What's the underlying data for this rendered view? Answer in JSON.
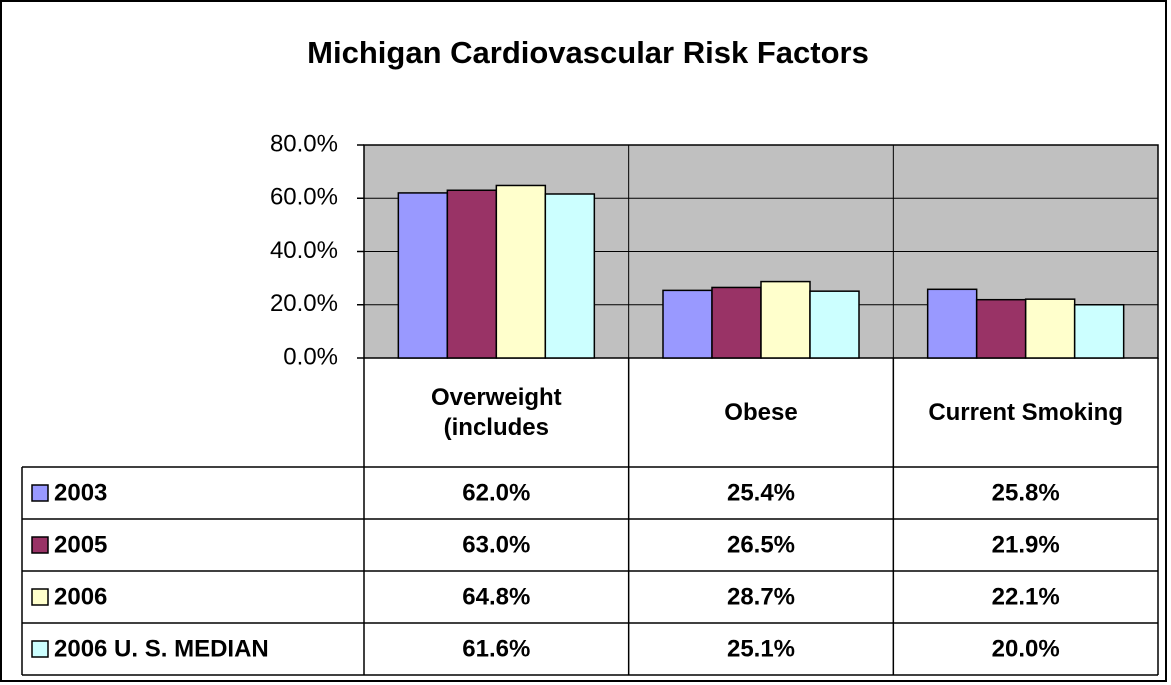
{
  "chart_data": {
    "type": "bar",
    "title": "Michigan Cardiovascular Risk Factors",
    "categories": [
      "Overweight (includes",
      "Obese",
      "Current Smoking"
    ],
    "series": [
      {
        "name": "2003",
        "color": "#9999ff",
        "values": [
          62.0,
          25.4,
          25.8
        ],
        "value_labels": [
          "62.0%",
          "25.4%",
          "25.8%"
        ]
      },
      {
        "name": "2005",
        "color": "#993366",
        "values": [
          63.0,
          26.5,
          21.9
        ],
        "value_labels": [
          "63.0%",
          "26.5%",
          "21.9%"
        ]
      },
      {
        "name": "2006",
        "color": "#ffffcc",
        "values": [
          64.8,
          28.7,
          22.1
        ],
        "value_labels": [
          "64.8%",
          "28.7%",
          "22.1%"
        ]
      },
      {
        "name": "2006 U. S. MEDIAN",
        "color": "#ccffff",
        "values": [
          61.6,
          25.1,
          20.0
        ],
        "value_labels": [
          "61.6%",
          "25.1%",
          "20.0%"
        ]
      }
    ],
    "ylim": [
      0,
      80
    ],
    "yticks": [
      {
        "value": 0,
        "label": "0.0%"
      },
      {
        "value": 20,
        "label": "20.0%"
      },
      {
        "value": 40,
        "label": "40.0%"
      },
      {
        "value": 60,
        "label": "60.0%"
      },
      {
        "value": 80,
        "label": "80.0%"
      }
    ],
    "grid": true,
    "plot_background": "#c0c0c0"
  }
}
